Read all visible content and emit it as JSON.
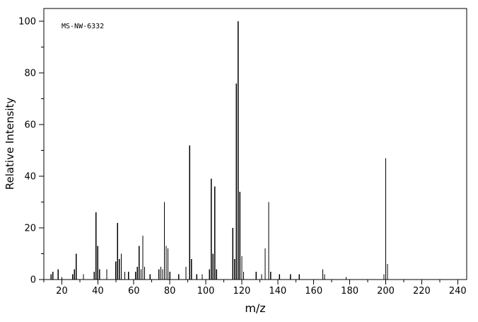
{
  "chart_data": {
    "type": "bar",
    "variant": "mass-spectrum-stick-plot",
    "annotation": "MS-NW-6332",
    "xlabel": "m/z",
    "ylabel": "Relative Intensity",
    "xlim": [
      10,
      245
    ],
    "ylim": [
      0,
      105
    ],
    "x_major_ticks": [
      20,
      40,
      60,
      80,
      100,
      120,
      140,
      160,
      180,
      200,
      220,
      240
    ],
    "x_minor_step": 10,
    "y_major_ticks": [
      0,
      20,
      40,
      60,
      80,
      100
    ],
    "y_minor_step": 10,
    "grid": false,
    "line_color": "#000000",
    "axis_color": "#000000",
    "background_color": "#ffffff",
    "peaks": [
      [
        14,
        2
      ],
      [
        15,
        3
      ],
      [
        18,
        4
      ],
      [
        20,
        1
      ],
      [
        26,
        2
      ],
      [
        27,
        4
      ],
      [
        28,
        10
      ],
      [
        32,
        2
      ],
      [
        38,
        3
      ],
      [
        39,
        26
      ],
      [
        40,
        13
      ],
      [
        41,
        4
      ],
      [
        45,
        4
      ],
      [
        50,
        7
      ],
      [
        51,
        22
      ],
      [
        52,
        8
      ],
      [
        53,
        10
      ],
      [
        55,
        3
      ],
      [
        57,
        3
      ],
      [
        61,
        3
      ],
      [
        62,
        5
      ],
      [
        63,
        13
      ],
      [
        64,
        4
      ],
      [
        65,
        17
      ],
      [
        66,
        5
      ],
      [
        69,
        2
      ],
      [
        74,
        4
      ],
      [
        75,
        5
      ],
      [
        76,
        4
      ],
      [
        77,
        30
      ],
      [
        78,
        13
      ],
      [
        79,
        12
      ],
      [
        80,
        3
      ],
      [
        85,
        2
      ],
      [
        89,
        5
      ],
      [
        91,
        52
      ],
      [
        92,
        8
      ],
      [
        95,
        2
      ],
      [
        98,
        2
      ],
      [
        102,
        4
      ],
      [
        103,
        39
      ],
      [
        104,
        10
      ],
      [
        105,
        36
      ],
      [
        106,
        4
      ],
      [
        115,
        20
      ],
      [
        116,
        8
      ],
      [
        117,
        76
      ],
      [
        118,
        100
      ],
      [
        119,
        34
      ],
      [
        120,
        9
      ],
      [
        121,
        3
      ],
      [
        128,
        3
      ],
      [
        131,
        2
      ],
      [
        133,
        12
      ],
      [
        135,
        30
      ],
      [
        136,
        3
      ],
      [
        141,
        2
      ],
      [
        147,
        2
      ],
      [
        152,
        2
      ],
      [
        165,
        4
      ],
      [
        166,
        2
      ],
      [
        178,
        1
      ],
      [
        199,
        2
      ],
      [
        200,
        47
      ],
      [
        201,
        6
      ]
    ]
  }
}
